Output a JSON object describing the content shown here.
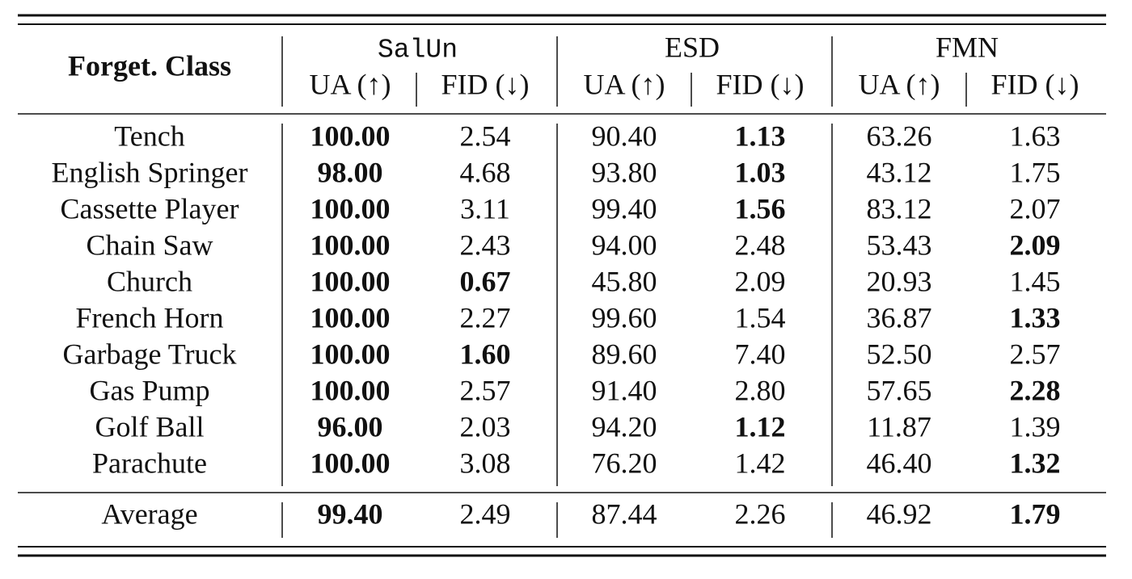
{
  "table": {
    "corner": "Forget. Class",
    "methods": [
      {
        "name": "SalUn",
        "monospace": true,
        "columns": [
          "UA (↑)",
          "FID (↓)"
        ]
      },
      {
        "name": "ESD",
        "monospace": false,
        "columns": [
          "UA (↑)",
          "FID (↓)"
        ]
      },
      {
        "name": "FMN",
        "monospace": false,
        "columns": [
          "UA (↑)",
          "FID (↓)"
        ]
      }
    ],
    "rows": [
      {
        "label": "Tench",
        "cells": [
          "100.00",
          "2.54",
          "90.40",
          "1.13",
          "63.26",
          "1.63"
        ],
        "bold": [
          true,
          false,
          false,
          true,
          false,
          false
        ]
      },
      {
        "label": "English Springer",
        "cells": [
          "98.00",
          "4.68",
          "93.80",
          "1.03",
          "43.12",
          "1.75"
        ],
        "bold": [
          true,
          false,
          false,
          true,
          false,
          false
        ]
      },
      {
        "label": "Cassette Player",
        "cells": [
          "100.00",
          "3.11",
          "99.40",
          "1.56",
          "83.12",
          "2.07"
        ],
        "bold": [
          true,
          false,
          false,
          true,
          false,
          false
        ]
      },
      {
        "label": "Chain Saw",
        "cells": [
          "100.00",
          "2.43",
          "94.00",
          "2.48",
          "53.43",
          "2.09"
        ],
        "bold": [
          true,
          false,
          false,
          false,
          false,
          true
        ]
      },
      {
        "label": "Church",
        "cells": [
          "100.00",
          "0.67",
          "45.80",
          "2.09",
          "20.93",
          "1.45"
        ],
        "bold": [
          true,
          true,
          false,
          false,
          false,
          false
        ]
      },
      {
        "label": "French Horn",
        "cells": [
          "100.00",
          "2.27",
          "99.60",
          "1.54",
          "36.87",
          "1.33"
        ],
        "bold": [
          true,
          false,
          false,
          false,
          false,
          true
        ]
      },
      {
        "label": "Garbage Truck",
        "cells": [
          "100.00",
          "1.60",
          "89.60",
          "7.40",
          "52.50",
          "2.57"
        ],
        "bold": [
          true,
          true,
          false,
          false,
          false,
          false
        ]
      },
      {
        "label": "Gas Pump",
        "cells": [
          "100.00",
          "2.57",
          "91.40",
          "2.80",
          "57.65",
          "2.28"
        ],
        "bold": [
          true,
          false,
          false,
          false,
          false,
          true
        ]
      },
      {
        "label": "Golf Ball",
        "cells": [
          "96.00",
          "2.03",
          "94.20",
          "1.12",
          "11.87",
          "1.39"
        ],
        "bold": [
          true,
          false,
          false,
          true,
          false,
          false
        ]
      },
      {
        "label": "Parachute",
        "cells": [
          "100.00",
          "3.08",
          "76.20",
          "1.42",
          "46.40",
          "1.32"
        ],
        "bold": [
          true,
          false,
          false,
          false,
          false,
          true
        ]
      }
    ],
    "average": {
      "label": "Average",
      "cells": [
        "99.40",
        "2.49",
        "87.44",
        "2.26",
        "46.92",
        "1.79"
      ],
      "bold": [
        true,
        false,
        false,
        false,
        false,
        true
      ]
    }
  }
}
